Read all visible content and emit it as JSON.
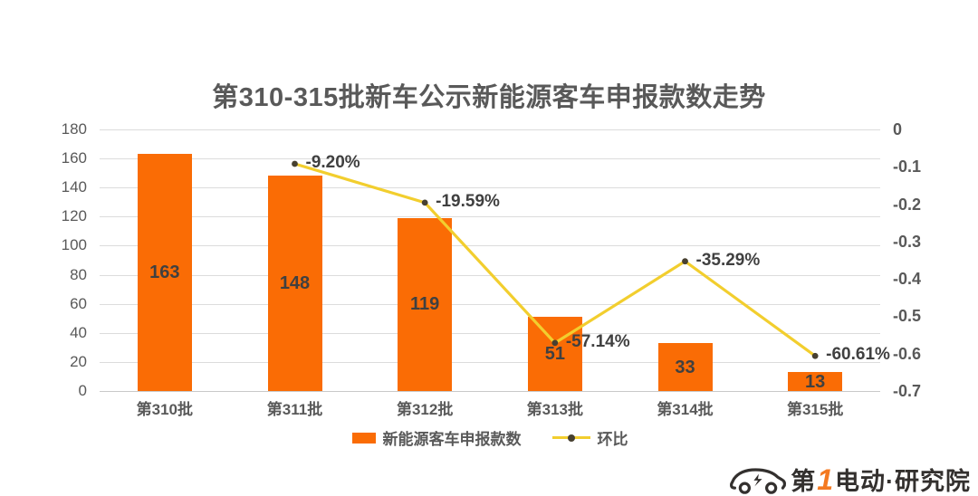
{
  "title": "第310-315批新车公示新能源客车申报款数走势",
  "chart_data": {
    "type": "combo",
    "categories": [
      "第310批",
      "第311批",
      "第312批",
      "第313批",
      "第314批",
      "第315批"
    ],
    "series": [
      {
        "name": "新能源客车申报款数",
        "kind": "bar",
        "axis": "left",
        "values": [
          163,
          148,
          119,
          51,
          33,
          13
        ],
        "color": "#FA6C05"
      },
      {
        "name": "环比",
        "kind": "line",
        "axis": "right",
        "values": [
          null,
          -0.092,
          -0.1959,
          -0.5714,
          -0.3529,
          -0.6061
        ],
        "point_labels": [
          null,
          "-9.20%",
          "-19.59%",
          "-57.14%",
          "-35.29%",
          "-60.61%"
        ],
        "color": "#F2CE2E",
        "marker_color": "#474030"
      }
    ],
    "left_axis": {
      "min": 0,
      "max": 180,
      "tick_labels": [
        "180",
        "160",
        "140",
        "120",
        "100",
        "80",
        "60",
        "40",
        "20",
        "0"
      ]
    },
    "right_axis": {
      "min": -0.7,
      "max": 0,
      "tick_labels": [
        "0",
        "-0.1",
        "-0.2",
        "-0.3",
        "-0.4",
        "-0.5",
        "-0.6",
        "-0.7"
      ]
    },
    "grid": true,
    "legend_position": "bottom"
  },
  "colors": {
    "bar_orange": "#FA6C05",
    "line_yellow": "#F2CE2E",
    "marker_dark": "#474030",
    "text_gray": "#595959",
    "label_dark": "#404040",
    "gridline": "#DCDCDC",
    "logo_dark": "#33302E",
    "logo_orange": "#F47920"
  },
  "logo": {
    "prefix": "第",
    "one": "1",
    "suffix": "电动",
    "dot": "·",
    "tail": "研究院"
  }
}
